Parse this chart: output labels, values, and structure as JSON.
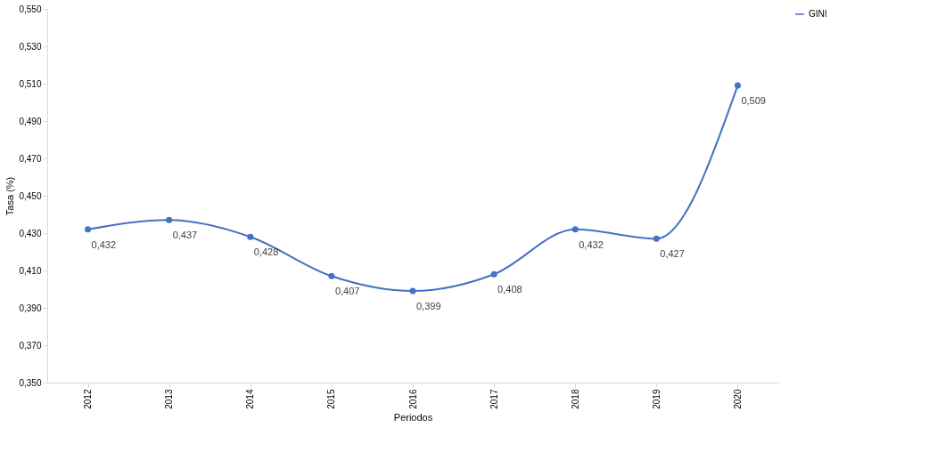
{
  "chart_data": {
    "type": "line",
    "xlabel": "Periodos",
    "ylabel": "Tasa (%)",
    "categories": [
      "2012",
      "2013",
      "2014",
      "2015",
      "2016",
      "2017",
      "2018",
      "2019",
      "2020"
    ],
    "series": [
      {
        "name": "GINI",
        "color": "#4472c4",
        "values": [
          0.432,
          0.437,
          0.428,
          0.407,
          0.399,
          0.408,
          0.432,
          0.427,
          0.509
        ],
        "value_labels": [
          "0,432",
          "0,437",
          "0,428",
          "0,407",
          "0,399",
          "0,408",
          "0,432",
          "0,427",
          "0,509"
        ]
      }
    ],
    "ylim": [
      0.35,
      0.55
    ],
    "yticks": [
      {
        "value": 0.35,
        "label": "0,350"
      },
      {
        "value": 0.37,
        "label": "0,370"
      },
      {
        "value": 0.39,
        "label": "0,390"
      },
      {
        "value": 0.41,
        "label": "0,410"
      },
      {
        "value": 0.43,
        "label": "0,430"
      },
      {
        "value": 0.45,
        "label": "0,450"
      },
      {
        "value": 0.47,
        "label": "0,470"
      },
      {
        "value": 0.49,
        "label": "0,490"
      },
      {
        "value": 0.51,
        "label": "0,510"
      },
      {
        "value": 0.53,
        "label": "0,530"
      },
      {
        "value": 0.55,
        "label": "0,550"
      }
    ],
    "grid": false,
    "legend": "right",
    "marker": "circle",
    "line_style": "solid"
  }
}
